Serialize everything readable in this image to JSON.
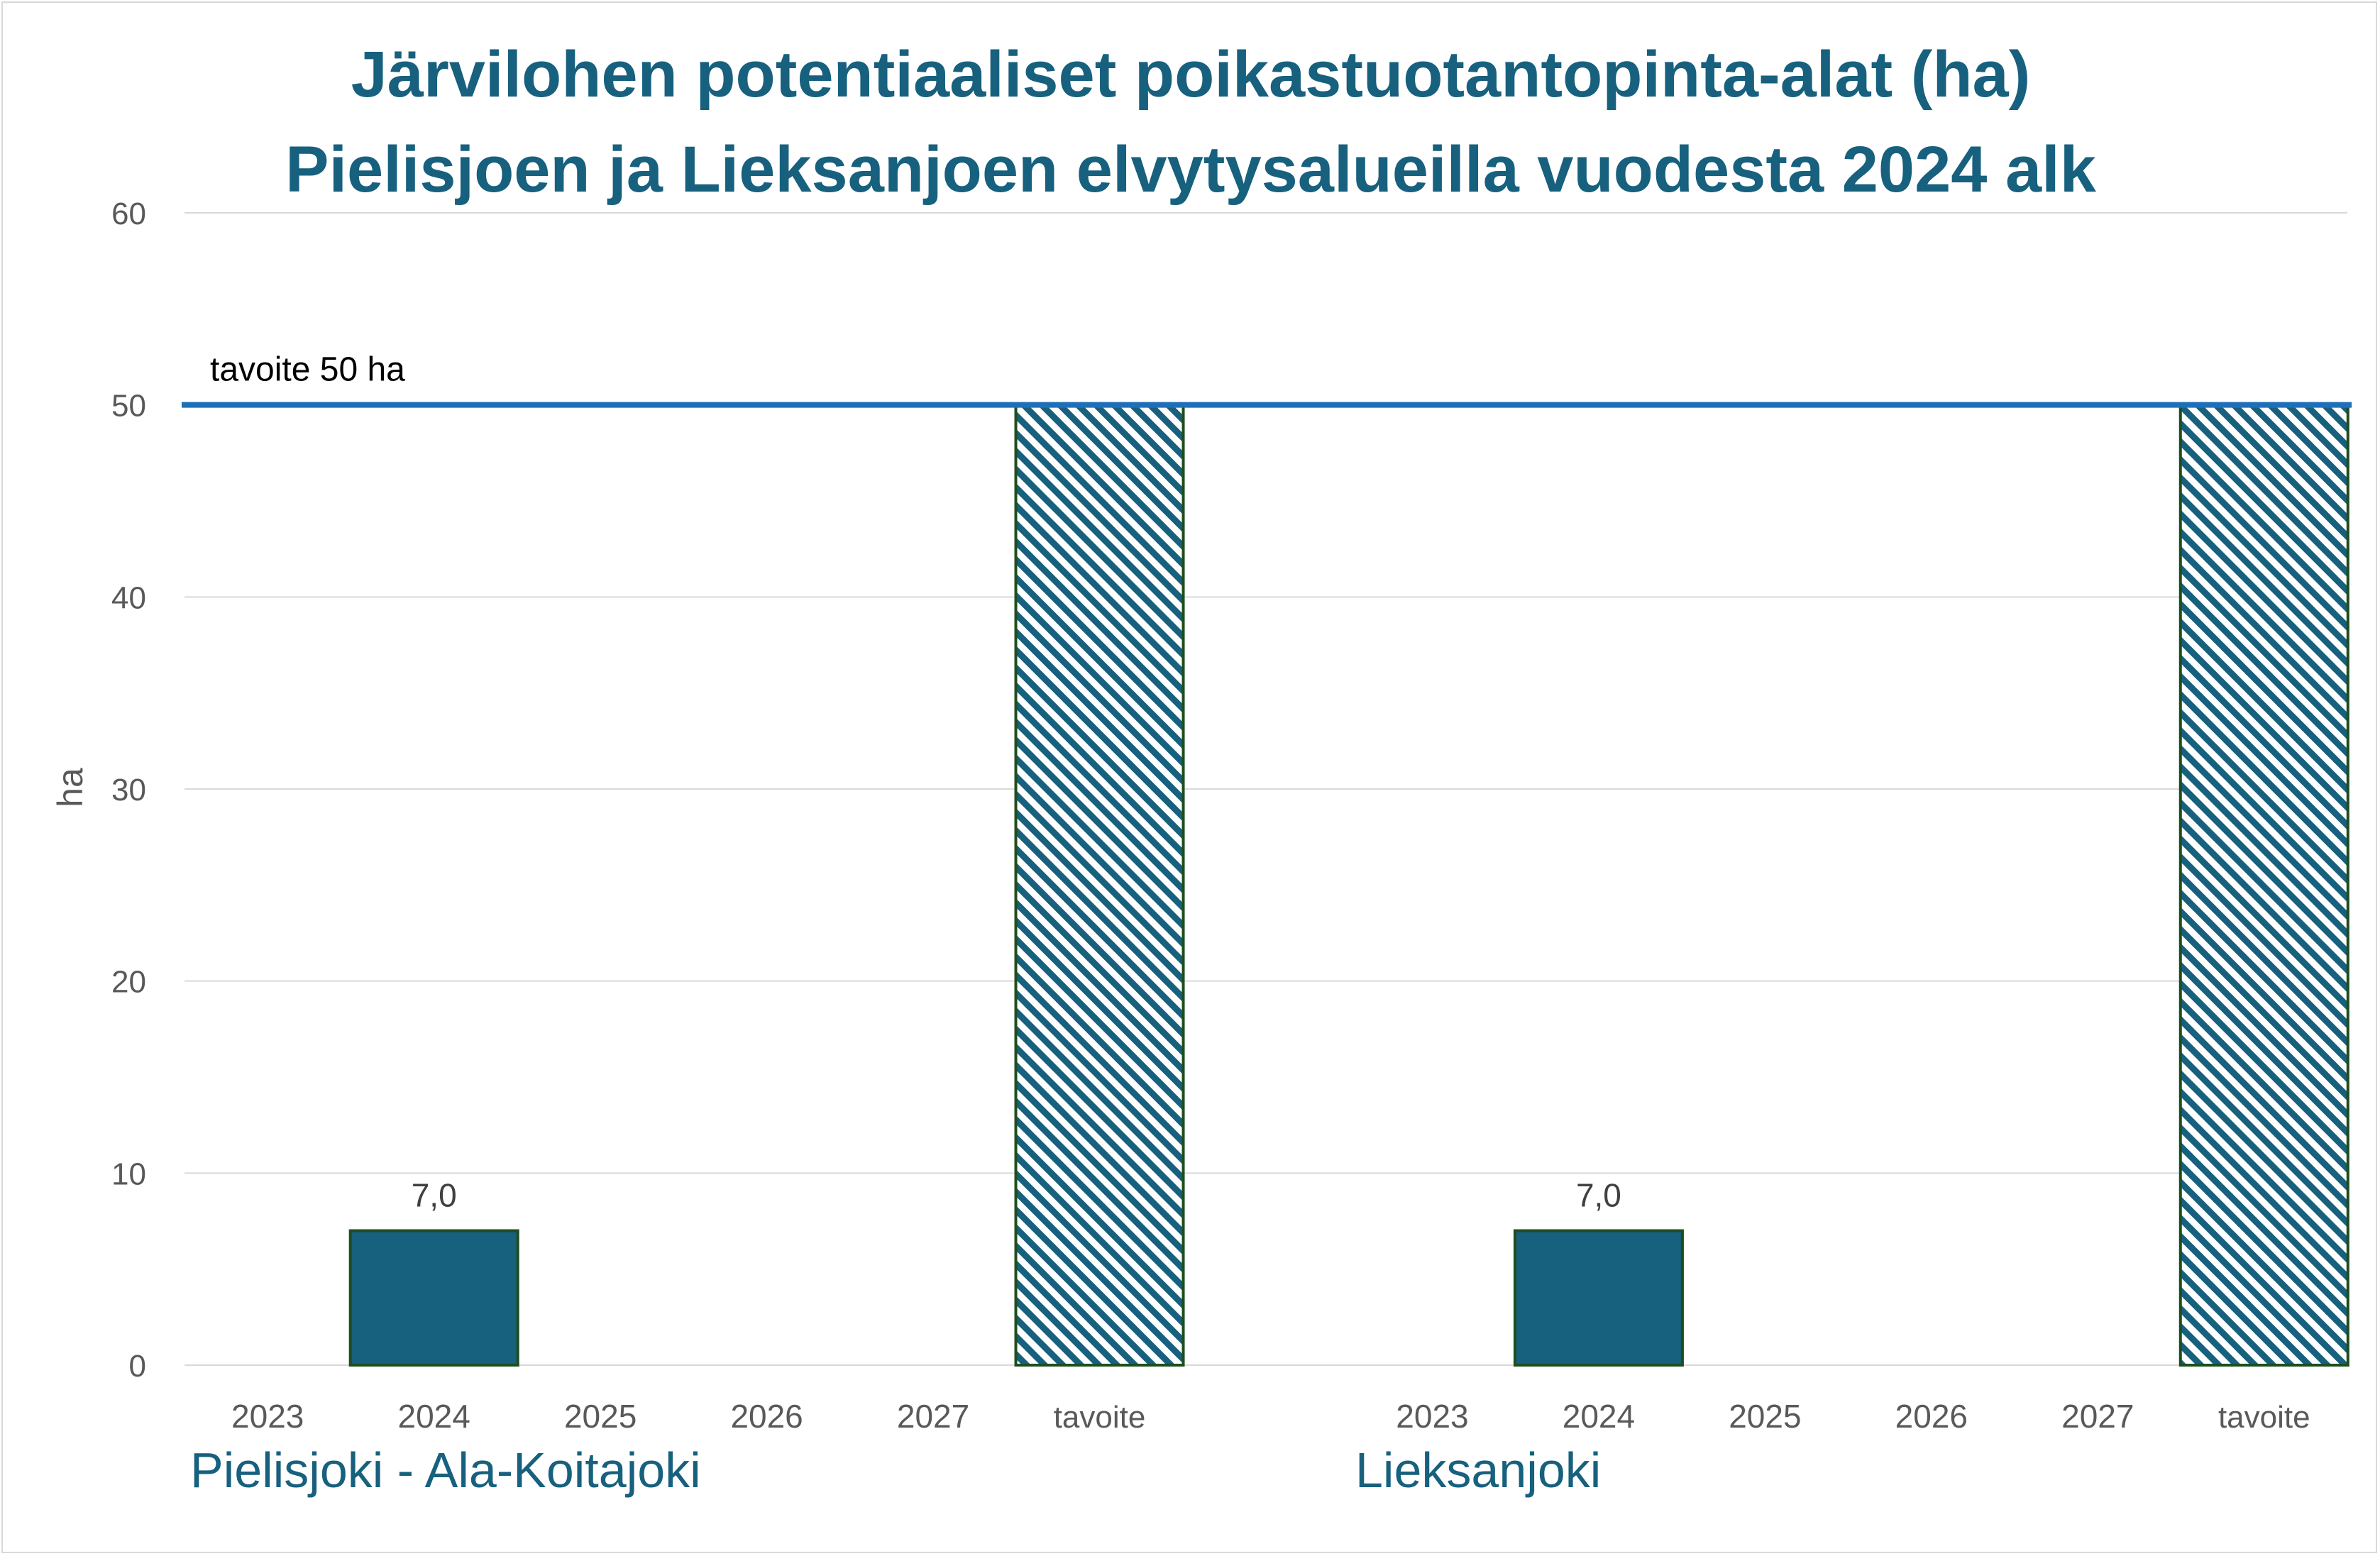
{
  "chart_data": {
    "type": "bar",
    "title_line1": "Järvilohen potentiaaliset poikastuotantopinta-alat (ha)",
    "title_line2": "Pielisjoen ja Lieksanjoen elvytysalueilla vuodesta 2024 alk",
    "ylabel": "ha",
    "ylim": [
      0,
      60
    ],
    "yticks": [
      0,
      10,
      20,
      30,
      40,
      50,
      60
    ],
    "grid": true,
    "groups": [
      {
        "name": "Pielisjoki - Ala-Koitajoki",
        "categories": [
          "2023",
          "2024",
          "2025",
          "2026",
          "2027",
          "tavoite"
        ],
        "values": [
          null,
          7.0,
          null,
          null,
          null,
          50
        ],
        "data_labels": [
          "",
          "7,0",
          "",
          "",
          "",
          ""
        ]
      },
      {
        "name": "Lieksanjoki",
        "categories": [
          "2023",
          "2024",
          "2025",
          "2026",
          "2027",
          "tavoite"
        ],
        "values": [
          null,
          7.0,
          null,
          null,
          null,
          50
        ],
        "data_labels": [
          "",
          "7,0",
          "",
          "",
          "",
          ""
        ]
      }
    ],
    "target_line": {
      "value": 50,
      "label": "tavoite 50 ha"
    },
    "colors": {
      "bar_fill": "#17607e",
      "bar_border": "#1e4d1e",
      "hatch": "#17607e",
      "target_line": "#1f6fb8",
      "gridline": "#d9d9d9"
    }
  }
}
